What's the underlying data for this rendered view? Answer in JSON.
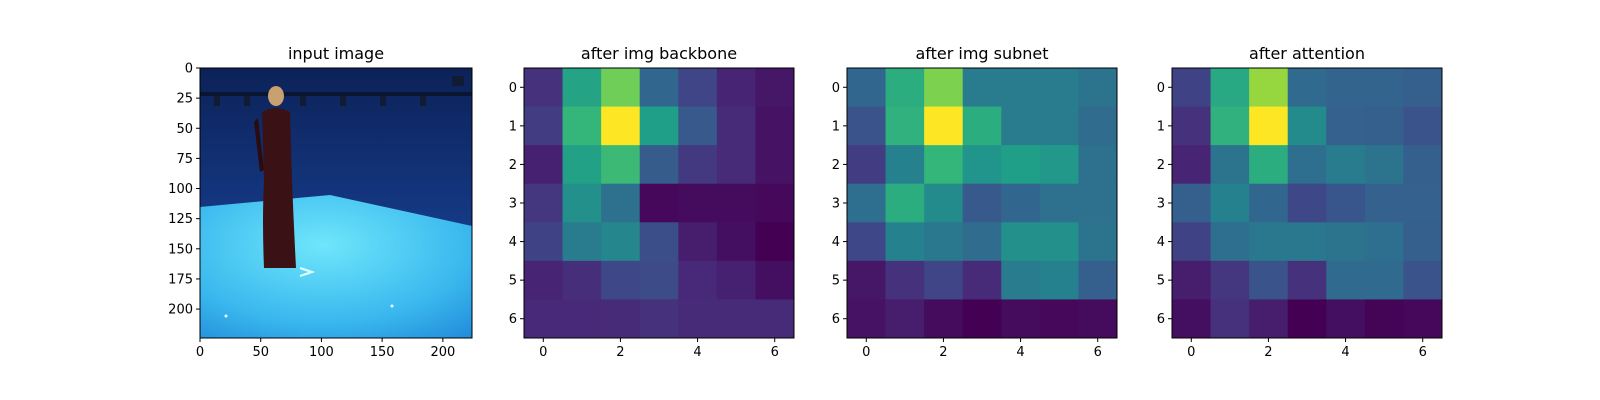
{
  "chart_data": [
    {
      "type": "image",
      "title": "input image",
      "xlim": [
        0,
        224
      ],
      "ylim": [
        224,
        0
      ],
      "x_ticks": [
        "0",
        "50",
        "100",
        "150",
        "200"
      ],
      "y_ticks": [
        "0",
        "25",
        "50",
        "75",
        "100",
        "125",
        "150",
        "175",
        "200"
      ],
      "colors": {
        "wall": "#123a8a",
        "floor": "#46c6f2",
        "figure": "#3a1216"
      }
    },
    {
      "type": "heatmap",
      "title": "after img backbone",
      "x": [
        0,
        1,
        2,
        3,
        4,
        5,
        6
      ],
      "y": [
        0,
        1,
        2,
        3,
        4,
        5,
        6
      ],
      "x_ticks": [
        "0",
        "2",
        "4",
        "6"
      ],
      "y_ticks": [
        "0",
        "1",
        "2",
        "3",
        "4",
        "5",
        "6"
      ],
      "colormap": "viridis",
      "values": [
        [
          0.14,
          0.58,
          0.78,
          0.33,
          0.21,
          0.1,
          0.06
        ],
        [
          0.18,
          0.66,
          1.0,
          0.56,
          0.28,
          0.12,
          0.05
        ],
        [
          0.09,
          0.57,
          0.68,
          0.29,
          0.17,
          0.12,
          0.05
        ],
        [
          0.16,
          0.5,
          0.37,
          0.02,
          0.03,
          0.03,
          0.02
        ],
        [
          0.2,
          0.42,
          0.46,
          0.24,
          0.08,
          0.04,
          0.0
        ],
        [
          0.1,
          0.13,
          0.22,
          0.23,
          0.11,
          0.09,
          0.04
        ],
        [
          0.11,
          0.11,
          0.12,
          0.14,
          0.12,
          0.12,
          0.12
        ]
      ]
    },
    {
      "type": "heatmap",
      "title": "after img subnet",
      "x": [
        0,
        1,
        2,
        3,
        4,
        5,
        6
      ],
      "y": [
        0,
        1,
        2,
        3,
        4,
        5,
        6
      ],
      "x_ticks": [
        "0",
        "2",
        "4",
        "6"
      ],
      "y_ticks": [
        "0",
        "1",
        "2",
        "3",
        "4",
        "5",
        "6"
      ],
      "colormap": "viridis",
      "values": [
        [
          0.33,
          0.62,
          0.8,
          0.42,
          0.42,
          0.42,
          0.38
        ],
        [
          0.26,
          0.64,
          1.0,
          0.62,
          0.42,
          0.42,
          0.35
        ],
        [
          0.18,
          0.44,
          0.66,
          0.52,
          0.56,
          0.53,
          0.37
        ],
        [
          0.36,
          0.62,
          0.48,
          0.28,
          0.33,
          0.37,
          0.37
        ],
        [
          0.22,
          0.44,
          0.4,
          0.35,
          0.5,
          0.5,
          0.38
        ],
        [
          0.06,
          0.14,
          0.21,
          0.12,
          0.42,
          0.44,
          0.3
        ],
        [
          0.05,
          0.08,
          0.03,
          0.0,
          0.03,
          0.02,
          0.03
        ]
      ]
    },
    {
      "type": "heatmap",
      "title": "after attention",
      "x": [
        0,
        1,
        2,
        3,
        4,
        5,
        6
      ],
      "y": [
        0,
        1,
        2,
        3,
        4,
        5,
        6
      ],
      "x_ticks": [
        "0",
        "2",
        "4",
        "6"
      ],
      "y_ticks": [
        "0",
        "1",
        "2",
        "3",
        "4",
        "5",
        "6"
      ],
      "colormap": "viridis",
      "values": [
        [
          0.2,
          0.6,
          0.84,
          0.34,
          0.32,
          0.32,
          0.3
        ],
        [
          0.14,
          0.64,
          1.0,
          0.48,
          0.31,
          0.3,
          0.26
        ],
        [
          0.1,
          0.38,
          0.62,
          0.36,
          0.42,
          0.38,
          0.3
        ],
        [
          0.3,
          0.44,
          0.33,
          0.22,
          0.27,
          0.31,
          0.31
        ],
        [
          0.2,
          0.36,
          0.4,
          0.4,
          0.38,
          0.36,
          0.3
        ],
        [
          0.08,
          0.16,
          0.26,
          0.14,
          0.34,
          0.34,
          0.26
        ],
        [
          0.04,
          0.14,
          0.08,
          0.0,
          0.04,
          0.01,
          0.02
        ]
      ]
    }
  ]
}
